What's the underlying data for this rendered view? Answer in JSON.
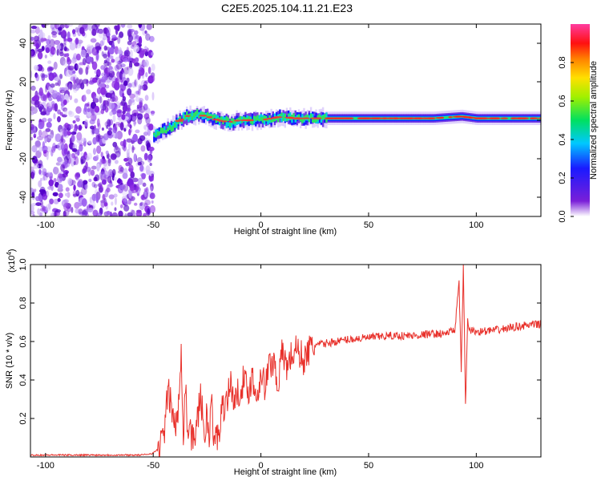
{
  "title": "C2E5.2025.104.11.21.E23",
  "colors": {
    "background": "#ffffff",
    "axis": "#000000",
    "snr_line": "#e8302a"
  },
  "chart_data": [
    {
      "type": "heatmap",
      "xlabel": "Height of straight line (km)",
      "ylabel": "Frequency (Hz)",
      "xlim": [
        -107,
        130
      ],
      "ylim": [
        -50,
        50
      ],
      "xticks": [
        -100,
        -50,
        0,
        50,
        100
      ],
      "yticks": [
        -40,
        -20,
        0,
        20,
        40
      ],
      "colorbar": {
        "label": "Normalized spectral amplitude",
        "range": [
          0,
          1
        ],
        "ticks": [
          "0.0",
          "0.2",
          "0.4",
          "0.6",
          "0.8"
        ],
        "colormap": "rainbow (purple-blue-cyan-green-yellow-orange-red-magenta)"
      },
      "description_values": {
        "noise_region_x": [
          -107,
          -50
        ],
        "signal_band_center_hz": [
          [
            -50,
            -8
          ],
          [
            -45,
            -5
          ],
          [
            -40,
            -2
          ],
          [
            -35,
            2
          ],
          [
            -30,
            3
          ],
          [
            -25,
            2
          ],
          [
            -20,
            0
          ],
          [
            -15,
            -1
          ],
          [
            -10,
            0
          ],
          [
            -5,
            0
          ],
          [
            0,
            0
          ],
          [
            5,
            1
          ],
          [
            10,
            2
          ],
          [
            15,
            1
          ],
          [
            20,
            1
          ],
          [
            30,
            1
          ],
          [
            50,
            1
          ],
          [
            80,
            1
          ],
          [
            93,
            2
          ],
          [
            100,
            1
          ],
          [
            130,
            1
          ]
        ]
      }
    },
    {
      "type": "line",
      "xlabel": "Height of straight line (km)",
      "ylabel": "SNR (10 * v/v)",
      "yscale_label": "(x10",
      "yscale_exponent": "4",
      "xlim": [
        -107,
        130
      ],
      "ylim": [
        0,
        1.0
      ],
      "xticks": [
        -100,
        -50,
        0,
        50,
        100
      ],
      "yticks": [
        "0.2",
        "0.4",
        "0.6",
        "0.8",
        "1.0"
      ],
      "series": [
        {
          "color": "#e8302a",
          "x": [
            -107,
            -90,
            -70,
            -55,
            -50,
            -47,
            -45,
            -43,
            -41,
            -39,
            -38,
            -37,
            -36,
            -35,
            -34,
            -33,
            -32,
            -30,
            -28,
            -26,
            -25,
            -24,
            -23,
            -22,
            -21,
            -20,
            -18,
            -16,
            -14,
            -12,
            -10,
            -8,
            -6,
            -4,
            -2,
            0,
            2,
            4,
            6,
            8,
            10,
            12,
            14,
            16,
            18,
            20,
            22,
            25,
            30,
            35,
            40,
            50,
            60,
            70,
            80,
            85,
            90,
            92,
            93,
            94,
            95,
            96,
            97,
            100,
            110,
            120,
            130
          ],
          "y": [
            0.01,
            0.01,
            0.01,
            0.01,
            0.02,
            0.05,
            0.12,
            0.35,
            0.22,
            0.15,
            0.3,
            0.58,
            0.12,
            0.4,
            0.1,
            0.2,
            0.08,
            0.15,
            0.32,
            0.1,
            0.25,
            0.05,
            0.35,
            0.04,
            0.12,
            0.1,
            0.25,
            0.3,
            0.38,
            0.28,
            0.35,
            0.4,
            0.34,
            0.42,
            0.3,
            0.45,
            0.36,
            0.48,
            0.5,
            0.38,
            0.55,
            0.47,
            0.52,
            0.56,
            0.54,
            0.5,
            0.55,
            0.58,
            0.59,
            0.6,
            0.61,
            0.62,
            0.63,
            0.63,
            0.64,
            0.64,
            0.66,
            0.9,
            0.45,
            1.0,
            0.26,
            0.7,
            0.66,
            0.65,
            0.66,
            0.68,
            0.69
          ]
        }
      ]
    }
  ]
}
